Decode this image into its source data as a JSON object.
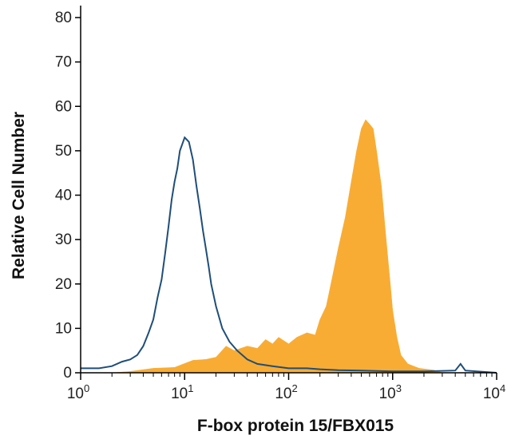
{
  "chart_data": {
    "type": "area",
    "xlabel": "F-box protein 15/FBX015",
    "ylabel": "Relative Cell Number",
    "xscale": "log",
    "xlim": [
      1,
      10000
    ],
    "ylim": [
      0,
      80
    ],
    "y_ticks": [
      "0",
      "10",
      "20",
      "30",
      "40",
      "50",
      "60",
      "70",
      "80"
    ],
    "x_ticks": [
      {
        "base": "10",
        "exp": "0"
      },
      {
        "base": "10",
        "exp": "1"
      },
      {
        "base": "10",
        "exp": "2"
      },
      {
        "base": "10",
        "exp": "3"
      },
      {
        "base": "10",
        "exp": "4"
      }
    ],
    "grid": false,
    "legend": "none",
    "colors": {
      "stained": "#F9AC33",
      "control": "#1F4E79"
    },
    "series": [
      {
        "style": "filled",
        "color": "#F9AC33",
        "points": [
          [
            1,
            0
          ],
          [
            2,
            0
          ],
          [
            3,
            0.3
          ],
          [
            5,
            1
          ],
          [
            8,
            1.2
          ],
          [
            12,
            2.8
          ],
          [
            16,
            3
          ],
          [
            20,
            3.5
          ],
          [
            25,
            6
          ],
          [
            30,
            5
          ],
          [
            40,
            6
          ],
          [
            50,
            5.5
          ],
          [
            60,
            7.5
          ],
          [
            70,
            6.5
          ],
          [
            80,
            8
          ],
          [
            100,
            6.5
          ],
          [
            120,
            8
          ],
          [
            150,
            9
          ],
          [
            180,
            8.5
          ],
          [
            200,
            12
          ],
          [
            230,
            15
          ],
          [
            260,
            21
          ],
          [
            300,
            28
          ],
          [
            350,
            35
          ],
          [
            400,
            43
          ],
          [
            450,
            50
          ],
          [
            500,
            55
          ],
          [
            550,
            57
          ],
          [
            600,
            56
          ],
          [
            650,
            55
          ],
          [
            700,
            50
          ],
          [
            780,
            42
          ],
          [
            850,
            32
          ],
          [
            950,
            20
          ],
          [
            1000,
            14
          ],
          [
            1100,
            8
          ],
          [
            1200,
            4
          ],
          [
            1400,
            2
          ],
          [
            1800,
            1
          ],
          [
            2500,
            0.6
          ],
          [
            3000,
            0
          ],
          [
            10000,
            0
          ]
        ]
      },
      {
        "style": "outline",
        "color": "#1F4E79",
        "points": [
          [
            1,
            1
          ],
          [
            1.5,
            1
          ],
          [
            2,
            1.5
          ],
          [
            2.5,
            2.5
          ],
          [
            3,
            3
          ],
          [
            3.5,
            4
          ],
          [
            4,
            6
          ],
          [
            4.5,
            9
          ],
          [
            5,
            12
          ],
          [
            5.5,
            17
          ],
          [
            6,
            21
          ],
          [
            6.5,
            27
          ],
          [
            7,
            33
          ],
          [
            7.5,
            39
          ],
          [
            8,
            43
          ],
          [
            8.5,
            46
          ],
          [
            9,
            50
          ],
          [
            10,
            53
          ],
          [
            11,
            52
          ],
          [
            12,
            48
          ],
          [
            13,
            42
          ],
          [
            14,
            37
          ],
          [
            15,
            32
          ],
          [
            16,
            28
          ],
          [
            17,
            24
          ],
          [
            18,
            20
          ],
          [
            20,
            15
          ],
          [
            23,
            10
          ],
          [
            27,
            7
          ],
          [
            32,
            5
          ],
          [
            40,
            3
          ],
          [
            50,
            2
          ],
          [
            70,
            1.5
          ],
          [
            100,
            1
          ],
          [
            150,
            1
          ],
          [
            200,
            0.8
          ],
          [
            300,
            0.6
          ],
          [
            500,
            0.5
          ],
          [
            1000,
            0.3
          ],
          [
            2000,
            0.3
          ],
          [
            4000,
            0.5
          ],
          [
            4500,
            2
          ],
          [
            5000,
            0.5
          ],
          [
            10000,
            0
          ]
        ]
      }
    ]
  }
}
